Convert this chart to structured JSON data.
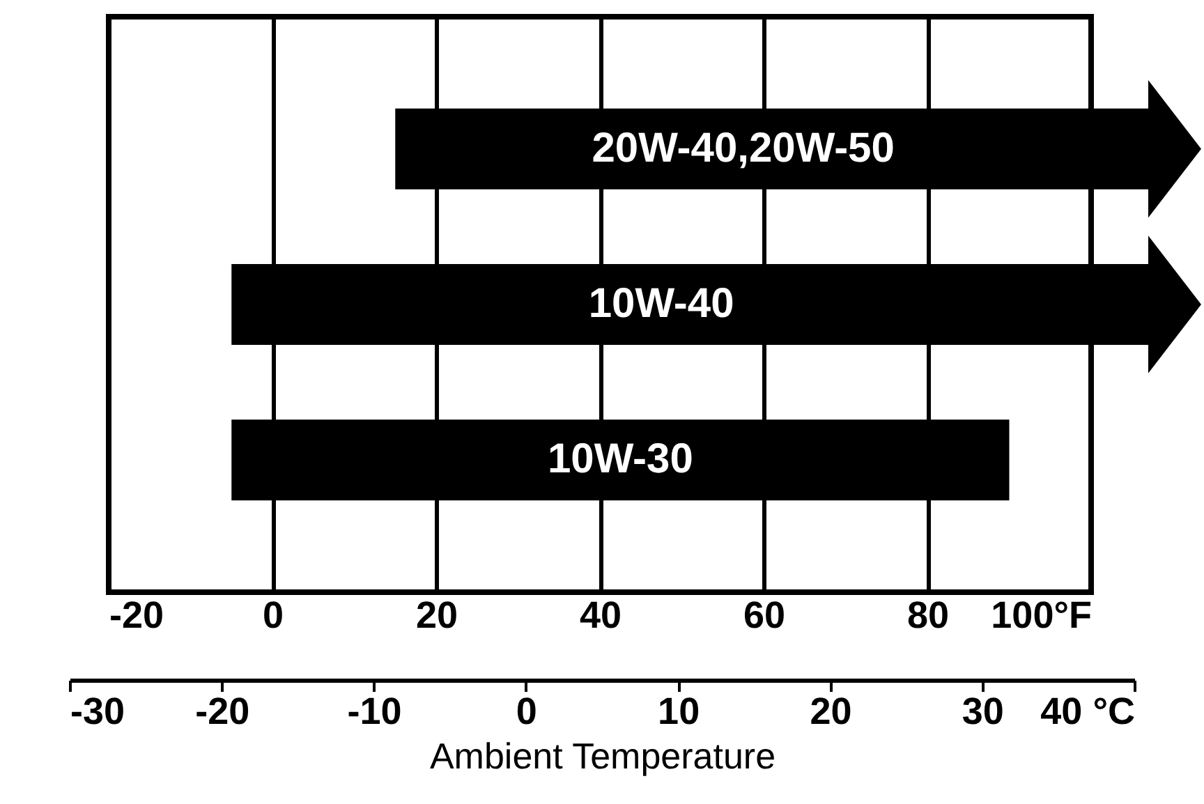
{
  "chart_data": {
    "type": "bar",
    "orientation": "horizontal",
    "categories": [
      "20W-40,20W-50",
      "10W-40",
      "10W-30"
    ],
    "base": [
      15,
      -5,
      -5
    ],
    "values": [
      85,
      105,
      95
    ],
    "color": "#000000",
    "xlim": [
      -20,
      100
    ],
    "xticks": [
      -20,
      0,
      20,
      40,
      60,
      80,
      {
        "value": 100,
        "label": "100°F"
      }
    ],
    "x2lim": [
      -30,
      40
    ],
    "x2ticks": [
      -30,
      -20,
      -10,
      0,
      10,
      20,
      30,
      {
        "value": 40,
        "label": "40 °C"
      }
    ],
    "xlabel": "Ambient Temperature",
    "grid": "x",
    "tick_labels": "x"
  }
}
